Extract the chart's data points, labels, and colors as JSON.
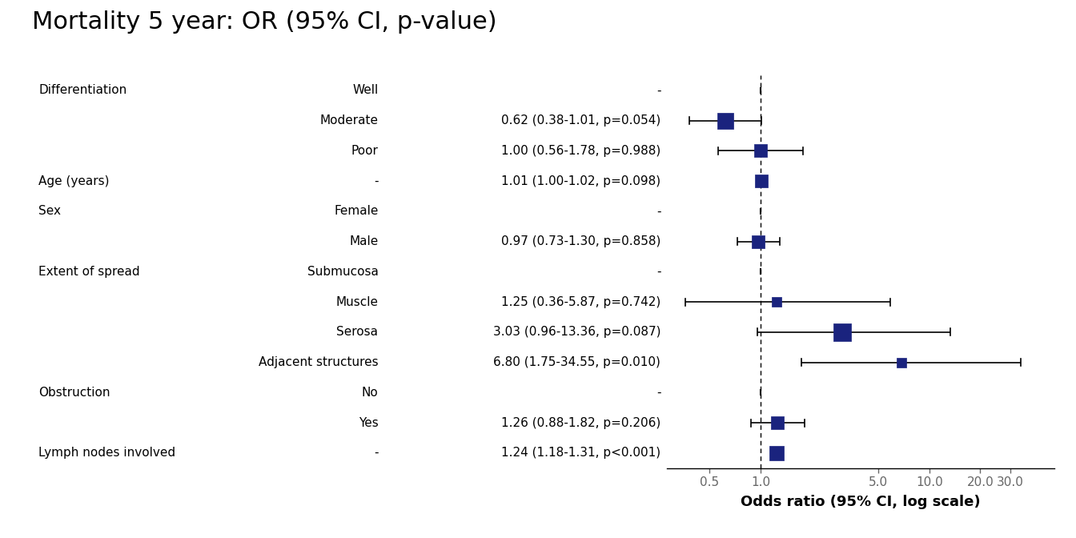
{
  "title": "Mortality 5 year: OR (95% CI, p-value)",
  "xlabel": "Odds ratio (95% CI, log scale)",
  "rows": [
    {
      "label1": "Differentiation",
      "label2": "Well",
      "or_text": "-",
      "or": null,
      "ci_lo": null,
      "ci_hi": null,
      "is_ref": true
    },
    {
      "label1": "",
      "label2": "Moderate",
      "or_text": "0.62 (0.38-1.01, p=0.054)",
      "or": 0.62,
      "ci_lo": 0.38,
      "ci_hi": 1.01,
      "is_ref": false
    },
    {
      "label1": "",
      "label2": "Poor",
      "or_text": "1.00 (0.56-1.78, p=0.988)",
      "or": 1.0,
      "ci_lo": 0.56,
      "ci_hi": 1.78,
      "is_ref": false
    },
    {
      "label1": "Age (years)",
      "label2": "-",
      "or_text": "1.01 (1.00-1.02, p=0.098)",
      "or": 1.01,
      "ci_lo": 1.0,
      "ci_hi": 1.02,
      "is_ref": false
    },
    {
      "label1": "Sex",
      "label2": "Female",
      "or_text": "-",
      "or": null,
      "ci_lo": null,
      "ci_hi": null,
      "is_ref": true
    },
    {
      "label1": "",
      "label2": "Male",
      "or_text": "0.97 (0.73-1.30, p=0.858)",
      "or": 0.97,
      "ci_lo": 0.73,
      "ci_hi": 1.3,
      "is_ref": false
    },
    {
      "label1": "Extent of spread",
      "label2": "Submucosa",
      "or_text": "-",
      "or": null,
      "ci_lo": null,
      "ci_hi": null,
      "is_ref": true
    },
    {
      "label1": "",
      "label2": "Muscle",
      "or_text": "1.25 (0.36-5.87, p=0.742)",
      "or": 1.25,
      "ci_lo": 0.36,
      "ci_hi": 5.87,
      "is_ref": false
    },
    {
      "label1": "",
      "label2": "Serosa",
      "or_text": "3.03 (0.96-13.36, p=0.087)",
      "or": 3.03,
      "ci_lo": 0.96,
      "ci_hi": 13.36,
      "is_ref": false
    },
    {
      "label1": "",
      "label2": "Adjacent structures",
      "or_text": "6.80 (1.75-34.55, p=0.010)",
      "or": 6.8,
      "ci_lo": 1.75,
      "ci_hi": 34.55,
      "is_ref": false
    },
    {
      "label1": "Obstruction",
      "label2": "No",
      "or_text": "-",
      "or": null,
      "ci_lo": null,
      "ci_hi": null,
      "is_ref": true
    },
    {
      "label1": "",
      "label2": "Yes",
      "or_text": "1.26 (0.88-1.82, p=0.206)",
      "or": 1.26,
      "ci_lo": 0.88,
      "ci_hi": 1.82,
      "is_ref": false
    },
    {
      "label1": "Lymph nodes involved",
      "label2": "-",
      "or_text": "1.24 (1.18-1.31, p<0.001)",
      "or": 1.24,
      "ci_lo": 1.18,
      "ci_hi": 1.31,
      "is_ref": false
    }
  ],
  "box_color": "#1a237e",
  "box_sizes": [
    0,
    220,
    140,
    140,
    0,
    140,
    0,
    80,
    260,
    80,
    0,
    140,
    180
  ],
  "xmin": 0.28,
  "xmax": 55.0,
  "xticks": [
    0.5,
    1.0,
    5.0,
    10.0,
    20.0,
    30.0
  ],
  "xticklabels": [
    "0.5",
    "1.0",
    "5.0",
    "10.0",
    "20.0",
    "30.0"
  ],
  "title_fontsize": 22,
  "text_fontsize": 11,
  "xlabel_fontsize": 13
}
